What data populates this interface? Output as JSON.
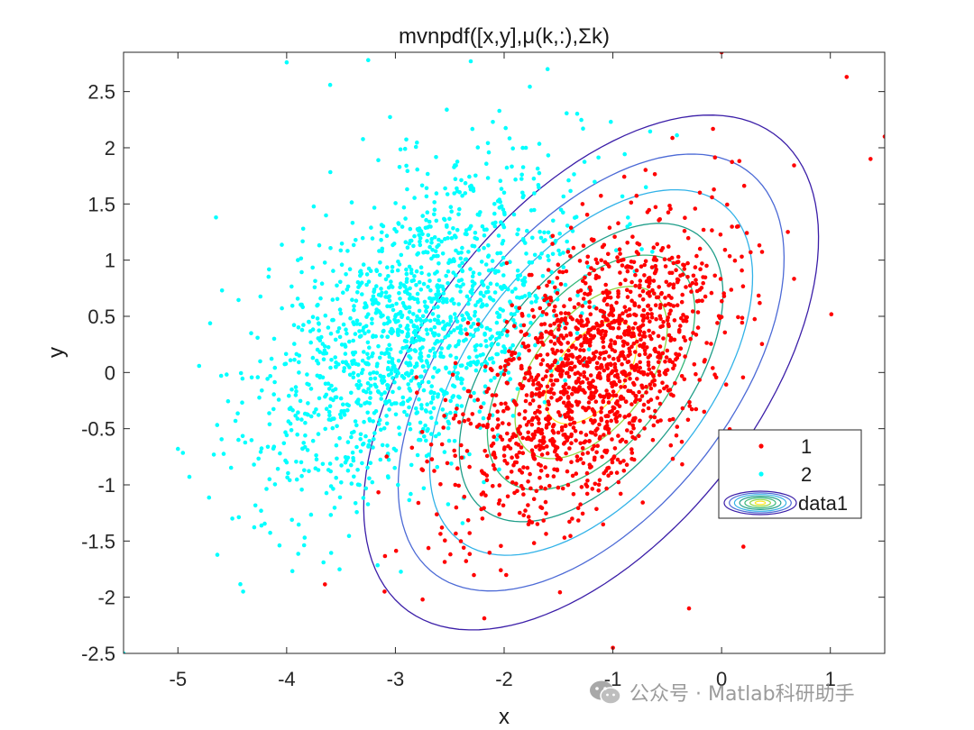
{
  "chart_data": {
    "type": "scatter",
    "title": "mvnpdf([x,y],μ(k,:),Σk)",
    "xlabel": "x",
    "ylabel": "y",
    "xlim": [
      -5.5,
      1.5
    ],
    "ylim": [
      -2.5,
      2.85
    ],
    "xticks": [
      -5,
      -4,
      -3,
      -2,
      -1,
      0,
      1
    ],
    "xtick_labels": [
      "-5",
      "-4",
      "-3",
      "-2",
      "-1",
      "0",
      "1"
    ],
    "yticks": [
      -2.5,
      -2,
      -1.5,
      -1,
      -0.5,
      0,
      0.5,
      1,
      1.5,
      2,
      2.5
    ],
    "ytick_labels": [
      "-2.5",
      "-2",
      "-1.5",
      "-1",
      "-0.5",
      "0",
      "0.5",
      "1",
      "1.5",
      "2",
      "2.5"
    ],
    "grid": false,
    "legend_position": "bottom-right",
    "series": [
      {
        "name": "1",
        "marker": "dot",
        "color": "#ff0000",
        "distribution": {
          "mean": [
            -1.2,
            0.0
          ],
          "cov": [
            [
              0.35,
              0.2
            ],
            [
              0.2,
              0.42
            ]
          ],
          "n": 1500
        },
        "points": [
          [
            -1.3,
            0.2
          ],
          [
            -1.0,
            -0.1
          ],
          [
            -1.5,
            0.3
          ],
          [
            -0.8,
            0.6
          ],
          [
            -1.7,
            -0.4
          ],
          [
            -0.6,
            1.0
          ],
          [
            -1.9,
            -0.8
          ],
          [
            -0.2,
            1.6
          ],
          [
            -2.2,
            -1.3
          ],
          [
            0.0,
            2.85
          ],
          [
            1.5,
            2.1
          ],
          [
            -0.3,
            -2.1
          ],
          [
            -1.0,
            -2.45
          ],
          [
            -3.1,
            -1.95
          ],
          [
            -2.75,
            -2.02
          ],
          [
            0.2,
            -1.55
          ],
          [
            1.15,
            2.63
          ],
          [
            1.37,
            1.9
          ]
        ]
      },
      {
        "name": "2",
        "marker": "dot",
        "color": "#00ffff",
        "distribution": {
          "mean": [
            -2.8,
            0.4
          ],
          "cov": [
            [
              0.55,
              0.28
            ],
            [
              0.28,
              0.55
            ]
          ],
          "n": 1500
        },
        "points": [
          [
            -2.8,
            0.5
          ],
          [
            -2.5,
            1.0
          ],
          [
            -3.2,
            0.0
          ],
          [
            -2.2,
            1.3
          ],
          [
            -3.5,
            -0.4
          ],
          [
            -2.0,
            1.6
          ],
          [
            -4.0,
            -0.8
          ],
          [
            -1.8,
            2.0
          ],
          [
            -4.5,
            -1.3
          ],
          [
            -3.6,
            2.56
          ],
          [
            -4.0,
            2.76
          ],
          [
            -3.25,
            2.78
          ],
          [
            -1.6,
            2.7
          ],
          [
            -5.0,
            -0.68
          ],
          [
            -5.5,
            -2.5
          ],
          [
            -4.4,
            -1.95
          ],
          [
            -4.65,
            1.38
          ]
        ]
      },
      {
        "name": "data1",
        "type": "contour",
        "mean": [
          -1.2,
          0.0
        ],
        "cov": [
          [
            0.35,
            0.2
          ],
          [
            0.2,
            0.42
          ]
        ],
        "levels": [
          {
            "chi2": 0.5,
            "color": "#fde725"
          },
          {
            "chi2": 1.4,
            "color": "#8fd744"
          },
          {
            "chi2": 2.6,
            "color": "#35b779"
          },
          {
            "chi2": 4.2,
            "color": "#1f9e89"
          },
          {
            "chi2": 6.3,
            "color": "#31b2e8"
          },
          {
            "chi2": 9.0,
            "color": "#4c6ad6"
          },
          {
            "chi2": 12.5,
            "color": "#3b1ea8"
          }
        ]
      }
    ],
    "legend": [
      {
        "label": "1",
        "kind": "marker",
        "color": "#ff0000"
      },
      {
        "label": "2",
        "kind": "marker",
        "color": "#00ffff"
      },
      {
        "label": "data1",
        "kind": "contour"
      }
    ]
  },
  "watermark": {
    "text": "公众号 · Matlab科研助手",
    "icon": "wechat-icon"
  }
}
